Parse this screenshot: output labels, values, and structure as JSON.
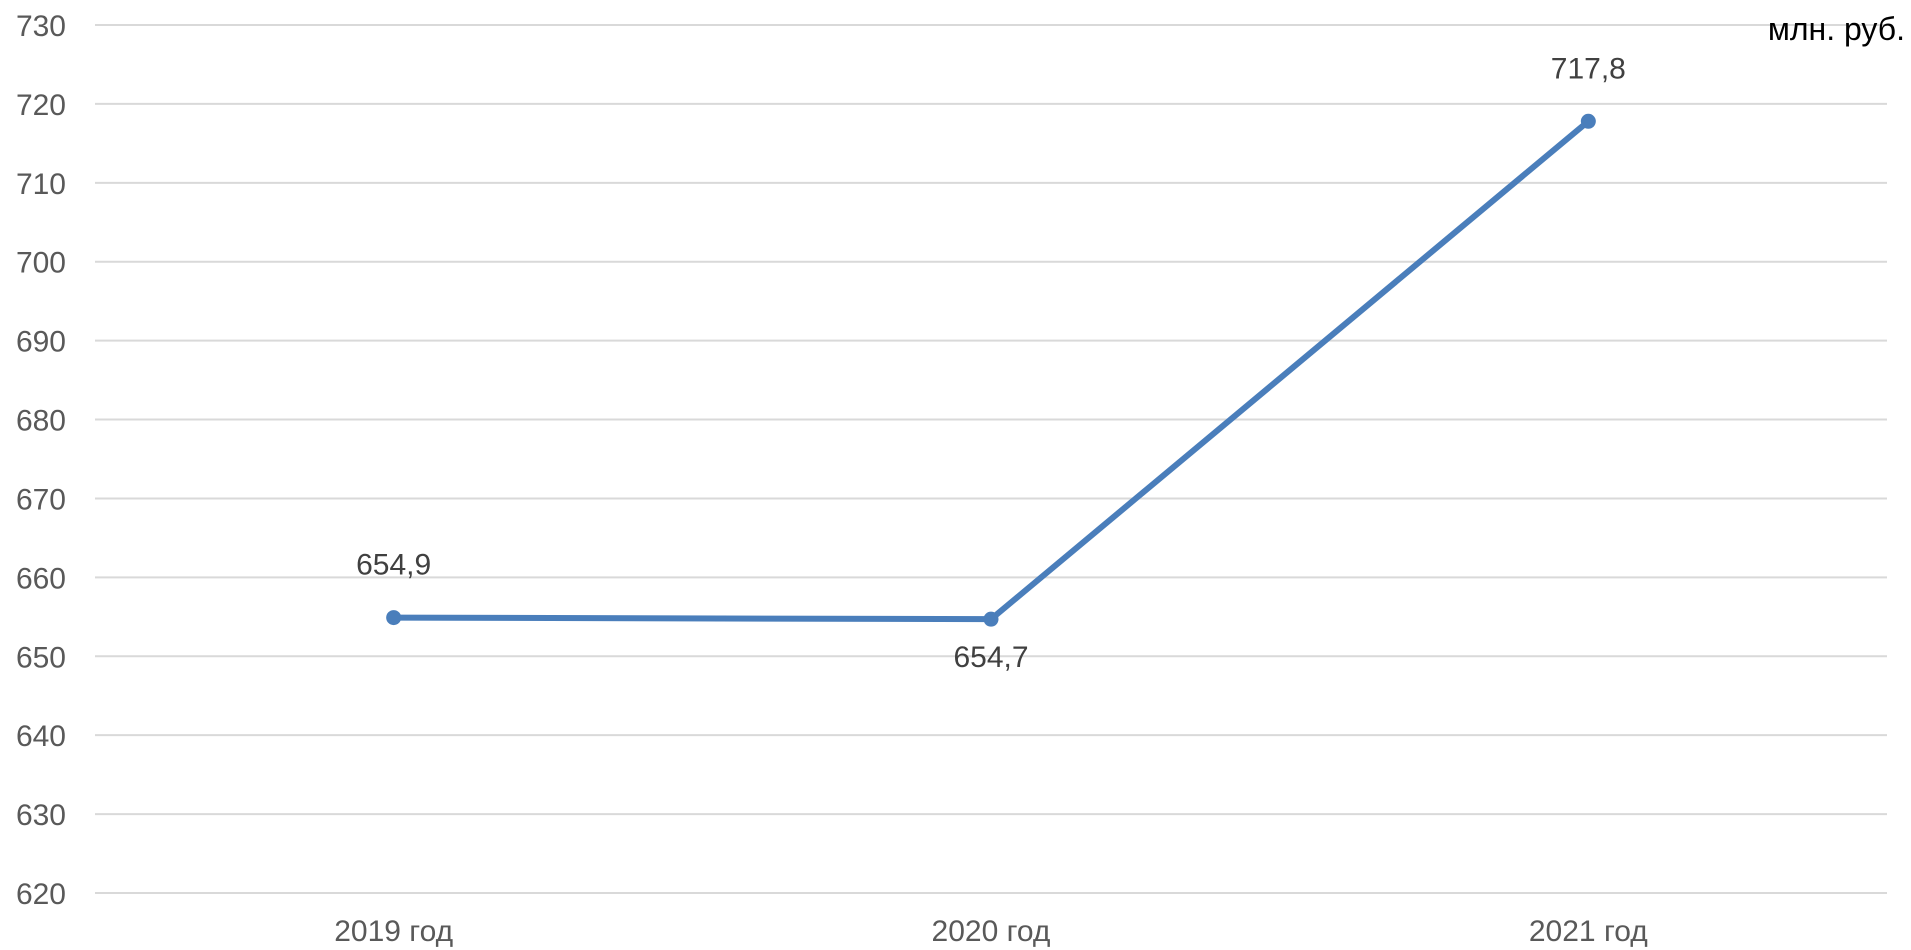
{
  "chart_data": {
    "type": "line",
    "title": "",
    "unit_label": "млн. руб.",
    "xlabel": "",
    "ylabel": "",
    "categories": [
      "2019 год",
      "2020 год",
      "2021 год"
    ],
    "series": [
      {
        "values": [
          654.9,
          654.7,
          717.8
        ],
        "data_labels": [
          "654,9",
          "654,7",
          "717,8"
        ],
        "color": "#4a7ebb"
      }
    ],
    "ylim": [
      620,
      730
    ],
    "y_ticks": [
      620,
      630,
      640,
      650,
      660,
      670,
      680,
      690,
      700,
      710,
      720,
      730
    ],
    "grid": true,
    "legend": "none",
    "colors": {
      "gridline": "#d9d9d9",
      "tick_text": "#595959",
      "data_label_text": "#404040"
    }
  }
}
